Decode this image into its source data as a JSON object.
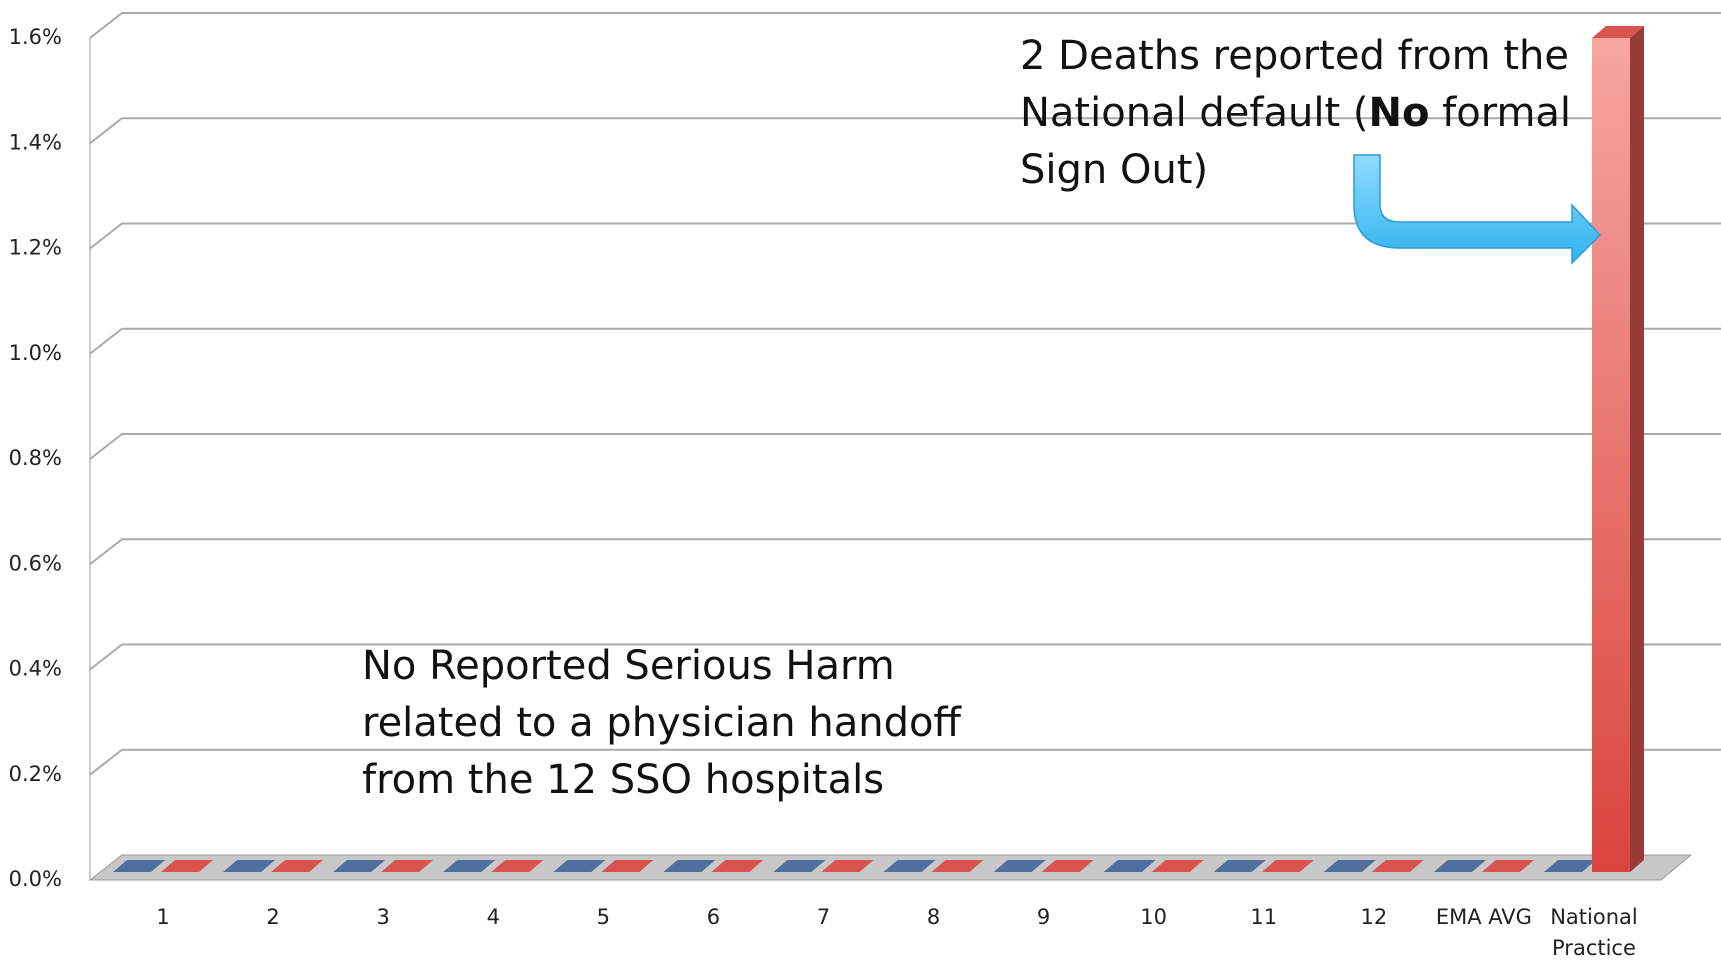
{
  "chart_data": {
    "type": "bar3d",
    "categories": [
      "1",
      "2",
      "3",
      "4",
      "5",
      "6",
      "7",
      "8",
      "9",
      "10",
      "11",
      "12",
      "EMA AVG",
      "National Practice"
    ],
    "series": [
      {
        "color": "#4f6f9f",
        "values": [
          0,
          0,
          0,
          0,
          0,
          0,
          0,
          0,
          0,
          0,
          0,
          0,
          0,
          0
        ]
      },
      {
        "color": "#d9534f",
        "values": [
          0,
          0,
          0,
          0,
          0,
          0,
          0,
          0,
          0,
          0,
          0,
          0,
          0,
          1.6
        ]
      }
    ],
    "ylim": [
      0,
      1.6
    ],
    "yticks": [
      {
        "value": 0,
        "label": "0.0%"
      },
      {
        "value": 0.2,
        "label": "0.2%"
      },
      {
        "value": 0.4,
        "label": "0.4%"
      },
      {
        "value": 0.6,
        "label": "0.6%"
      },
      {
        "value": 0.8,
        "label": "0.8%"
      },
      {
        "value": 1.0,
        "label": "1.0%"
      },
      {
        "value": 1.2,
        "label": "1.2%"
      },
      {
        "value": 1.4,
        "label": "1.4%"
      },
      {
        "value": 1.6,
        "label": "1.6%"
      }
    ],
    "grid": true,
    "annotations": [
      {
        "parts": [
          "2 Deaths reported from the National default  (",
          "No",
          " formal Sign Out)"
        ]
      },
      {
        "parts": [
          "No Reported Serious Harm related to a physician handoff from the 12 SSO hospitals"
        ]
      }
    ]
  }
}
